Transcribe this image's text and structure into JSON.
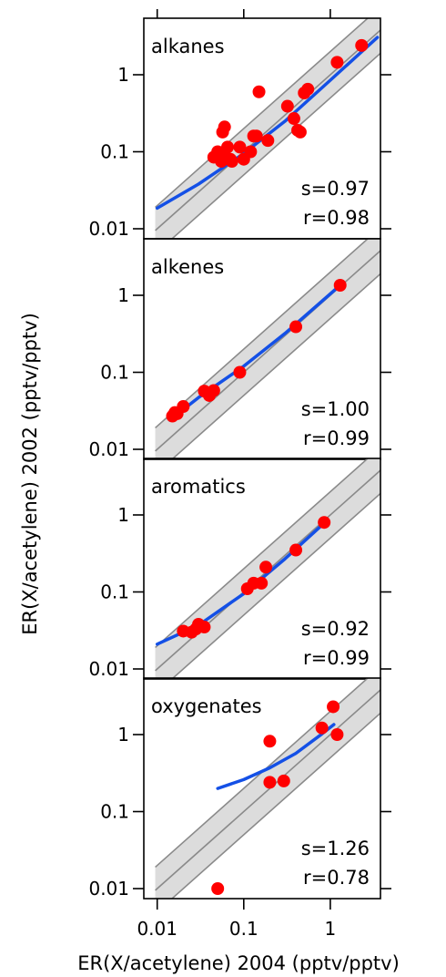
{
  "figure": {
    "ylabel": "ER(X/acetylene) 2002 (pptv/pptv)",
    "xlabel": "ER(X/acetylene) 2004 (pptv/pptv)",
    "x_ticks": [
      "0.01",
      "0.1",
      "1"
    ],
    "y_ticks": [
      "0.01",
      "0.1",
      "1"
    ]
  },
  "colors": {
    "points": "#ff0000",
    "fit": "#1450e6",
    "band": "#dcdcdc",
    "lines": "#8a8a8a"
  },
  "chart_data": [
    {
      "type": "scatter",
      "panel": "alkanes",
      "title": "alkanes",
      "s_label": "s=0.97",
      "r_label": "r=0.98",
      "x_scale": "log",
      "y_scale": "log",
      "xlim": [
        0.007,
        3.8
      ],
      "ylim": [
        0.01,
        3.6
      ],
      "x": [
        0.045,
        0.05,
        0.055,
        0.057,
        0.06,
        0.062,
        0.065,
        0.07,
        0.073,
        0.09,
        0.1,
        0.12,
        0.13,
        0.14,
        0.15,
        0.19,
        0.32,
        0.38,
        0.42,
        0.45,
        0.5,
        0.55,
        1.2,
        2.3
      ],
      "y": [
        0.085,
        0.1,
        0.075,
        0.18,
        0.21,
        0.085,
        0.115,
        0.08,
        0.075,
        0.115,
        0.08,
        0.1,
        0.16,
        0.16,
        0.6,
        0.14,
        0.39,
        0.27,
        0.19,
        0.18,
        0.58,
        0.65,
        1.45,
        2.4
      ],
      "fit_curve": {
        "x": [
          0.01,
          0.03,
          0.1,
          0.3,
          1,
          3.5
        ],
        "y": [
          0.0185,
          0.038,
          0.095,
          0.25,
          0.85,
          3.05
        ]
      },
      "band": "1:1 line with factor-of-2 lines"
    },
    {
      "type": "scatter",
      "panel": "alkenes",
      "title": "alkenes",
      "s_label": "s=1.00",
      "r_label": "r=0.99",
      "x_scale": "log",
      "y_scale": "log",
      "xlim": [
        0.007,
        3.8
      ],
      "ylim": [
        0.01,
        3.6
      ],
      "x": [
        0.015,
        0.016,
        0.017,
        0.02,
        0.035,
        0.04,
        0.045,
        0.09,
        0.4,
        1.3
      ],
      "y": [
        0.027,
        0.03,
        0.029,
        0.036,
        0.057,
        0.05,
        0.058,
        0.1,
        0.39,
        1.35
      ],
      "fit_curve": {
        "x": [
          0.014,
          0.03,
          0.1,
          0.3,
          1.3
        ],
        "y": [
          0.024,
          0.047,
          0.12,
          0.32,
          1.35
        ]
      },
      "band": "1:1 line with factor-of-2 lines"
    },
    {
      "type": "scatter",
      "panel": "aromatics",
      "title": "aromatics",
      "s_label": "s=0.92",
      "r_label": "r=0.99",
      "x_scale": "log",
      "y_scale": "log",
      "xlim": [
        0.007,
        3.8
      ],
      "ylim": [
        0.01,
        3.6
      ],
      "x": [
        0.02,
        0.025,
        0.028,
        0.03,
        0.035,
        0.11,
        0.13,
        0.16,
        0.18,
        0.4,
        0.85
      ],
      "y": [
        0.031,
        0.03,
        0.033,
        0.038,
        0.035,
        0.11,
        0.13,
        0.13,
        0.21,
        0.35,
        0.8
      ],
      "fit_curve": {
        "x": [
          0.01,
          0.03,
          0.1,
          0.3,
          0.9
        ],
        "y": [
          0.021,
          0.037,
          0.095,
          0.27,
          0.83
        ]
      },
      "band": "1:1 line with factor-of-2 lines"
    },
    {
      "type": "scatter",
      "panel": "oxygenates",
      "title": "oxygenates",
      "s_label": "s=1.26",
      "r_label": "r=0.78",
      "x_scale": "log",
      "y_scale": "log",
      "xlim": [
        0.007,
        3.8
      ],
      "ylim": [
        0.01,
        3.6
      ],
      "x": [
        0.05,
        0.2,
        0.2,
        0.29,
        0.8,
        1.08,
        1.2
      ],
      "y": [
        0.01,
        0.82,
        0.24,
        0.25,
        1.22,
        2.3,
        1.0
      ],
      "fit_curve": {
        "x": [
          0.05,
          0.1,
          0.2,
          0.4,
          0.8,
          1.1
        ],
        "y": [
          0.2,
          0.26,
          0.37,
          0.57,
          1.02,
          1.35
        ]
      },
      "band": "1:1 line with factor-of-2 lines"
    }
  ]
}
